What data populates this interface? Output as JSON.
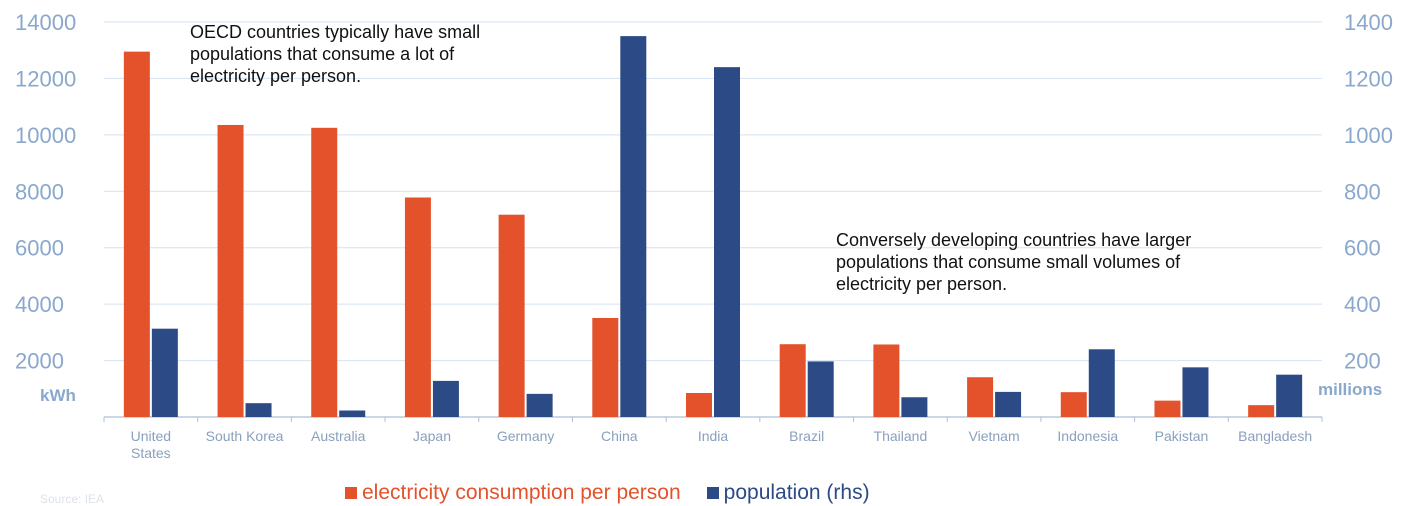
{
  "chart_data": {
    "type": "bar",
    "categories": [
      "United States",
      "South Korea",
      "Australia",
      "Japan",
      "Germany",
      "China",
      "India",
      "Brazil",
      "Thailand",
      "Vietnam",
      "Indonesia",
      "Pakistan",
      "Bangladesh"
    ],
    "category_lines": [
      [
        "United",
        "States"
      ],
      [
        "South Korea"
      ],
      [
        "Australia"
      ],
      [
        "Japan"
      ],
      [
        "Germany"
      ],
      [
        "China"
      ],
      [
        "India"
      ],
      [
        "Brazil"
      ],
      [
        "Thailand"
      ],
      [
        "Vietnam"
      ],
      [
        "Indonesia"
      ],
      [
        "Pakistan"
      ],
      [
        "Bangladesh"
      ]
    ],
    "series": [
      {
        "name": "electricity consumption per person",
        "axis": "left",
        "color": "#e4522c",
        "values": [
          12950,
          10350,
          10250,
          7780,
          7170,
          3510,
          850,
          2580,
          2570,
          1410,
          880,
          580,
          420
        ]
      },
      {
        "name": "population (rhs)",
        "axis": "right",
        "color": "#2c4a86",
        "values": [
          313,
          49,
          23,
          128,
          82,
          1350,
          1240,
          197,
          70,
          89,
          240,
          176,
          150
        ]
      }
    ],
    "left_axis": {
      "unit": "kWh",
      "range": [
        0,
        14000
      ],
      "ticks": [
        2000,
        4000,
        6000,
        8000,
        10000,
        12000,
        14000
      ]
    },
    "right_axis": {
      "unit": "millions",
      "range": [
        0,
        1400
      ],
      "ticks": [
        200,
        400,
        600,
        800,
        1000,
        1200,
        1400
      ]
    },
    "annotations": [
      "OECD countries typically have small populations that consume a lot of electricity per person.",
      "Conversely developing countries have larger populations that consume small volumes of electricity per person."
    ],
    "legend_position": "bottom",
    "gridlines": true
  },
  "annotations": {
    "oecd": "OECD countries typically have small\npopulations that consume a lot of\nelectricity per person.",
    "developing": "Conversely developing countries have larger\npopulations that consume small volumes of\nelectricity per person."
  },
  "units": {
    "left": "kWh",
    "right": "millions"
  },
  "legend": {
    "consumption_label": "electricity consumption per person",
    "population_label": "population (rhs)"
  },
  "source": "Source: IEA",
  "colors": {
    "consumption": "#e4522c",
    "population": "#2c4a86",
    "axis_text": "#8aa8cc",
    "category_text": "#8aa0bc",
    "grid": "#d4e2f0"
  }
}
